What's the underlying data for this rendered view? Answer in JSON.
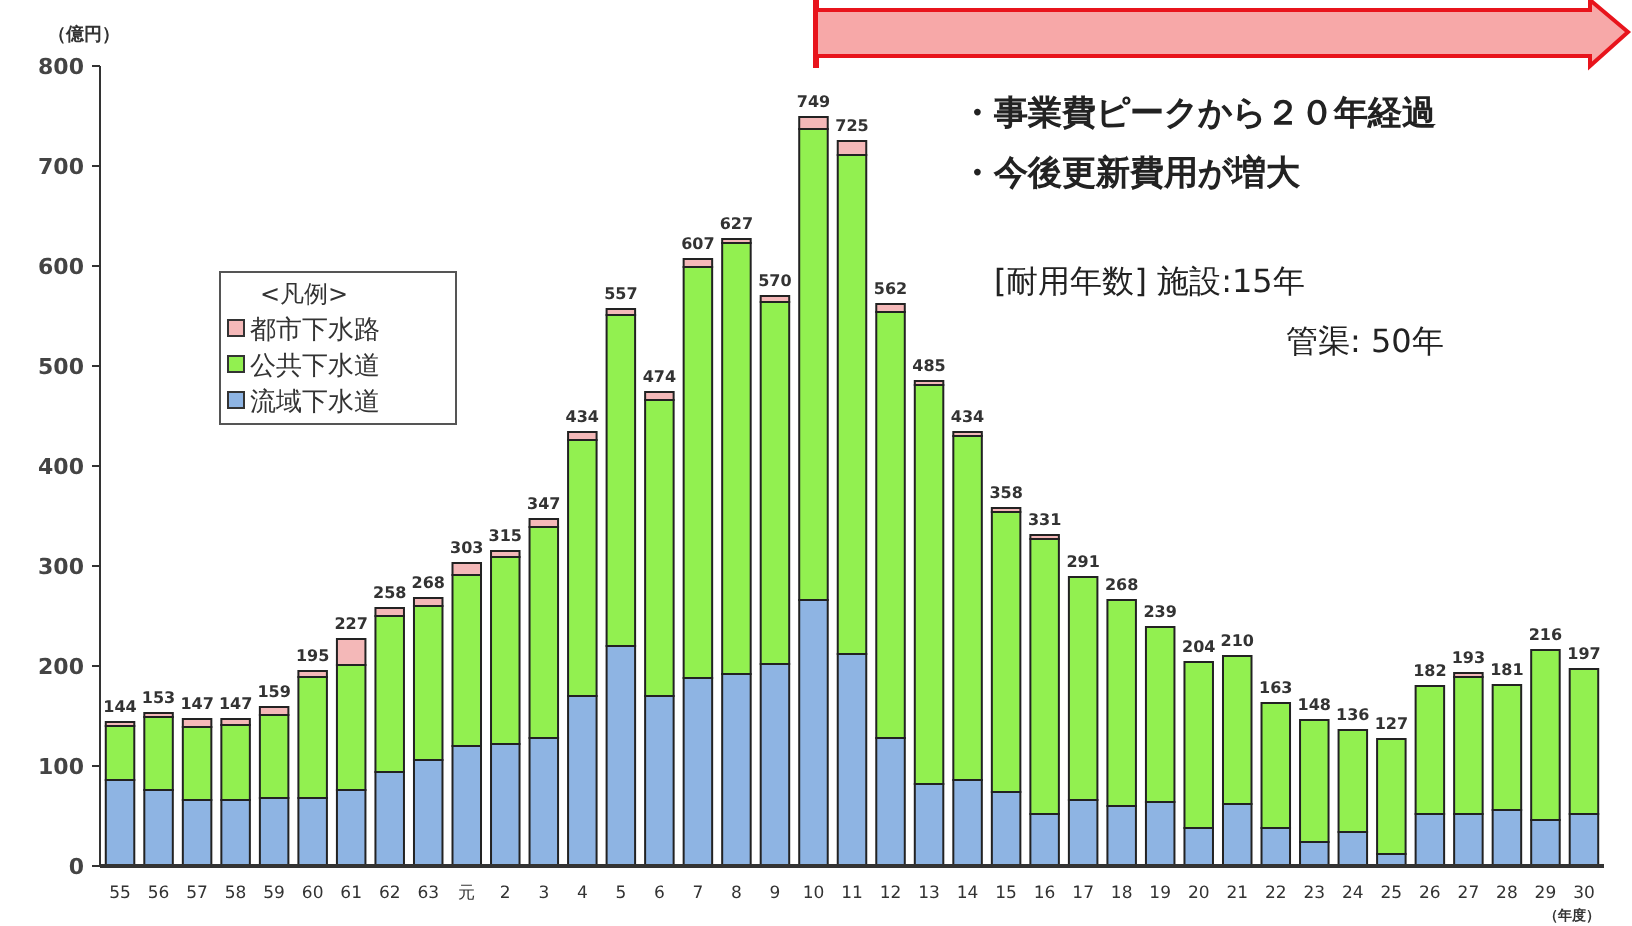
{
  "chart_data": {
    "type": "bar",
    "stacked": true,
    "ylabel": "（億円）",
    "xlabel": "（年度）",
    "legend_title": "<凡例>",
    "legend": "left",
    "categories": [
      "55",
      "56",
      "57",
      "58",
      "59",
      "60",
      "61",
      "62",
      "63",
      "元",
      "2",
      "3",
      "4",
      "5",
      "6",
      "7",
      "8",
      "9",
      "10",
      "11",
      "12",
      "13",
      "14",
      "15",
      "16",
      "17",
      "18",
      "19",
      "20",
      "21",
      "22",
      "23",
      "24",
      "25",
      "26",
      "27",
      "28",
      "29",
      "30"
    ],
    "series": [
      {
        "name": "流域下水道",
        "color": "#8eb4e3",
        "values": [
          86,
          76,
          66,
          66,
          68,
          68,
          76,
          94,
          106,
          120,
          122,
          128,
          170,
          220,
          170,
          188,
          192,
          202,
          266,
          212,
          128,
          82,
          86,
          74,
          52,
          66,
          60,
          64,
          38,
          62,
          38,
          24,
          34,
          12,
          52,
          52,
          56,
          46,
          52
        ]
      },
      {
        "name": "公共下水道",
        "color": "#92f050",
        "values": [
          54,
          73,
          73,
          75,
          83,
          121,
          125,
          156,
          154,
          171,
          187,
          211,
          256,
          331,
          296,
          411,
          431,
          362,
          471,
          499,
          426,
          399,
          344,
          280,
          275,
          223,
          206,
          175,
          166,
          148,
          125,
          122,
          102,
          115,
          128,
          137,
          125,
          170,
          145
        ]
      },
      {
        "name": "都市下水路",
        "color": "#f4b8b8",
        "values": [
          4,
          4,
          8,
          6,
          8,
          6,
          26,
          8,
          8,
          12,
          6,
          8,
          8,
          6,
          8,
          8,
          4,
          6,
          12,
          14,
          8,
          4,
          4,
          4,
          4,
          null,
          null,
          0,
          0,
          0,
          0,
          null,
          0,
          0,
          null,
          4,
          0,
          0,
          0
        ]
      }
    ],
    "totals": [
      "144",
      "153",
      "147",
      "147",
      "159",
      "195",
      "227",
      "258",
      "268",
      "303",
      "315",
      "347",
      "434",
      "557",
      "474",
      "607",
      "627",
      "570",
      "749",
      "725",
      "562",
      "485",
      "434",
      "358",
      "331",
      "291",
      "268",
      "239",
      "204",
      "210",
      "163",
      "148",
      "136",
      "127",
      "182",
      "193",
      "181",
      "216",
      "197"
    ],
    "ylim": [
      0,
      800
    ],
    "yticks": [
      0,
      100,
      200,
      300,
      400,
      500,
      600,
      700,
      800
    ],
    "annotations": [
      "・事業費ピークから２０年経過",
      "・今後更新費用が増大",
      "[耐用年数]  施設:15年",
      "管渠: 50年"
    ]
  }
}
